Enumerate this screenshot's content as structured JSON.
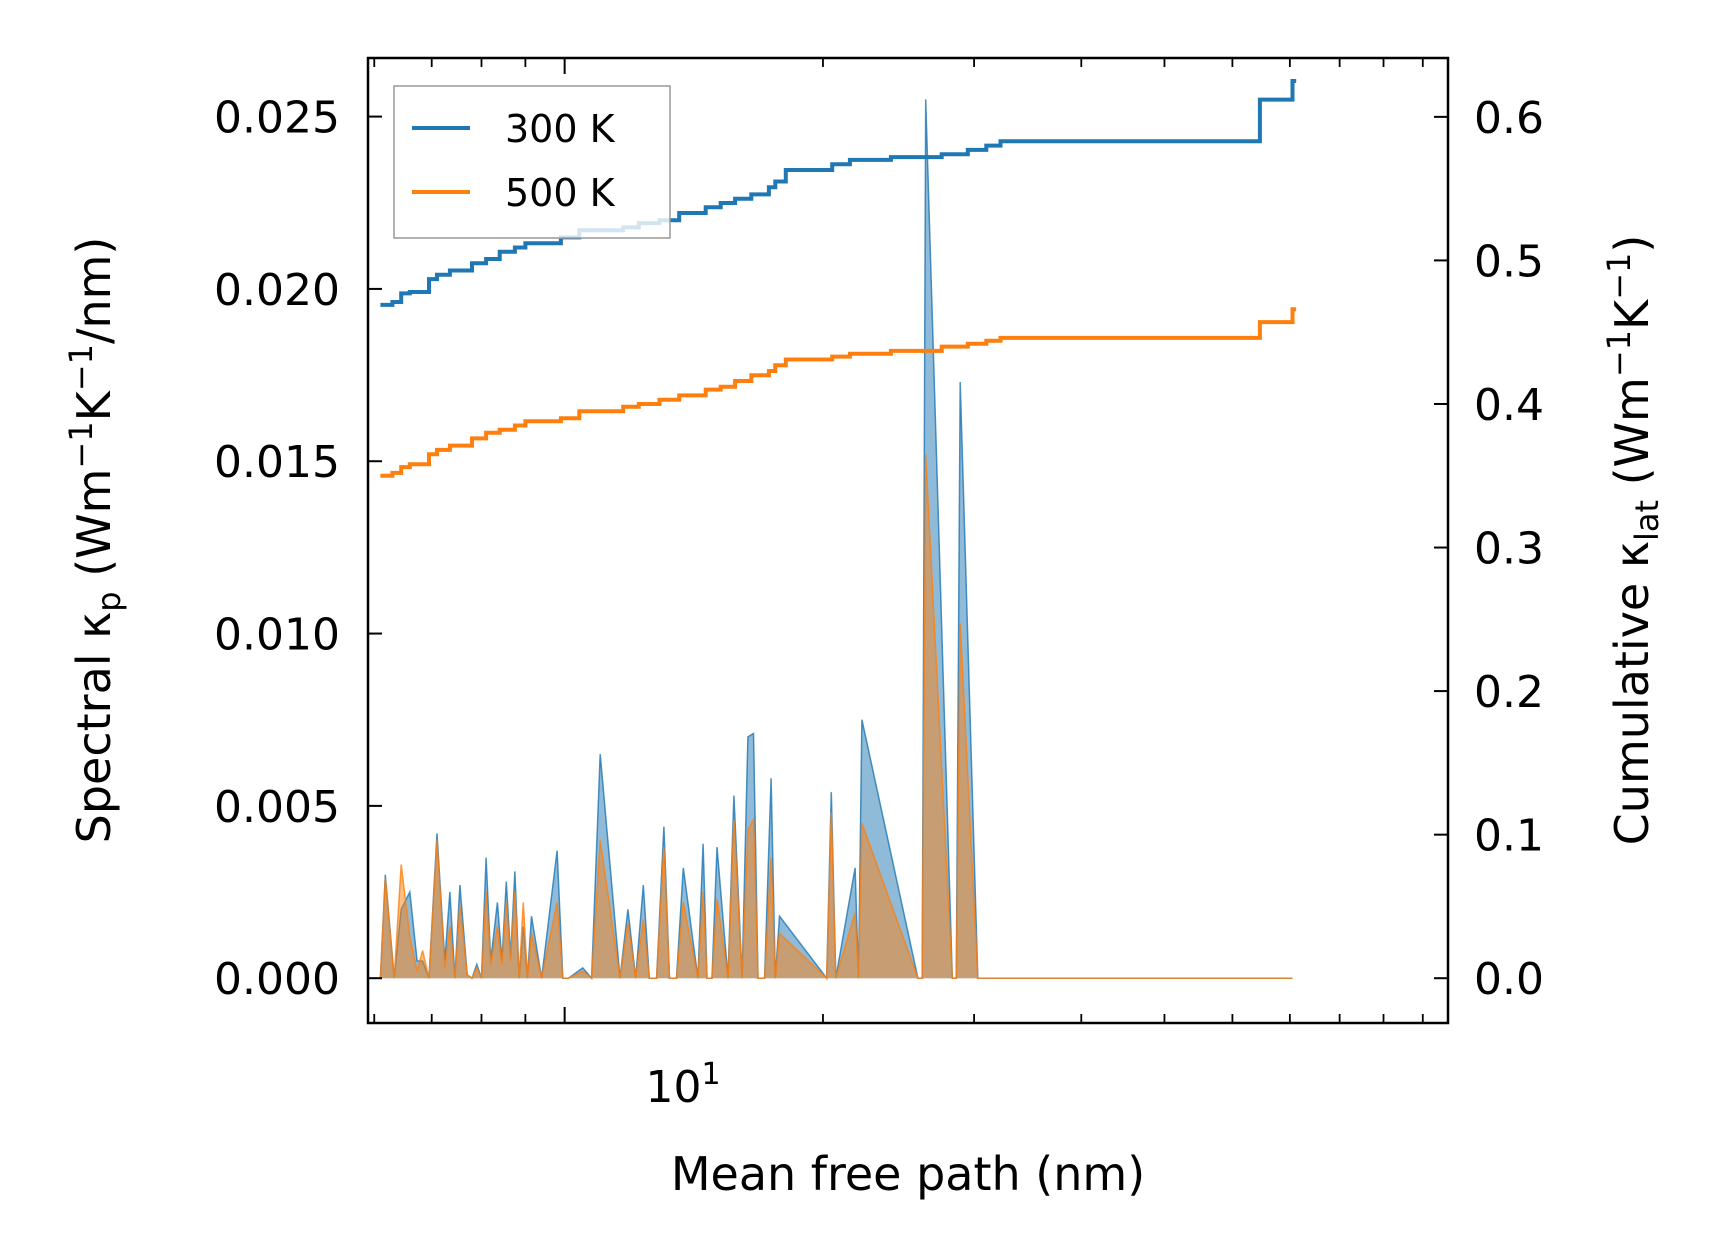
{
  "chart_data": {
    "type": "line",
    "xscale": "log",
    "xlabel": "Mean free path (nm)",
    "ylabel_left": {
      "pre": "Spectral κ",
      "sub": "p",
      "post": " (Wm",
      "sup1": "−1",
      "mid": "K",
      "sup2": "−1",
      "end": "/nm)"
    },
    "ylabel_right": {
      "pre": "Cumulative κ",
      "sub": "lat",
      "post": " (Wm",
      "sup1": "−1",
      "mid": "K",
      "sup2": "−1",
      "end": ")"
    },
    "xtick_label": {
      "base": "10",
      "exp": "1"
    },
    "xlim": [
      5.9,
      107
    ],
    "ylim_left": [
      -0.0013,
      0.0267
    ],
    "ylim_right": [
      -0.0312,
      0.641
    ],
    "yticks_left": [
      "0.000",
      "0.005",
      "0.010",
      "0.015",
      "0.020",
      "0.025"
    ],
    "yticks_left_values": [
      0,
      0.005,
      0.01,
      0.015,
      0.02,
      0.025
    ],
    "yticks_right": [
      "0.0",
      "0.1",
      "0.2",
      "0.3",
      "0.4",
      "0.5",
      "0.6"
    ],
    "yticks_right_values": [
      0,
      0.1,
      0.2,
      0.3,
      0.4,
      0.5,
      0.6
    ],
    "legend": {
      "placement": "top-left",
      "entries": [
        "300 K",
        "500 K"
      ]
    },
    "colors": {
      "s300": "#1f77b4",
      "s500": "#ff7f0e"
    },
    "cumulative": [
      {
        "name": "300 K",
        "x": [
          6.1,
          6.3,
          6.45,
          6.6,
          6.95,
          7.1,
          7.35,
          7.8,
          8.1,
          8.4,
          8.75,
          9.0,
          9.9,
          10.4,
          11.7,
          12.2,
          12.9,
          13.6,
          14.6,
          15.2,
          15.8,
          16.5,
          17.3,
          17.6,
          18.1,
          20.5,
          21.5,
          24.0,
          27.5,
          29.5,
          31.0,
          32.2,
          63.6,
          64.6,
          69.7,
          70.5,
          71.2
        ],
        "y": [
          0.469,
          0.471,
          0.477,
          0.478,
          0.487,
          0.49,
          0.493,
          0.498,
          0.501,
          0.506,
          0.509,
          0.512,
          0.516,
          0.521,
          0.523,
          0.526,
          0.528,
          0.533,
          0.537,
          0.54,
          0.543,
          0.546,
          0.551,
          0.555,
          0.563,
          0.567,
          0.57,
          0.572,
          0.574,
          0.577,
          0.58,
          0.583,
          0.583,
          0.612,
          0.612,
          0.625,
          0.625
        ]
      },
      {
        "name": "500 K",
        "x": [
          6.1,
          6.3,
          6.45,
          6.6,
          6.95,
          7.1,
          7.35,
          7.8,
          8.1,
          8.4,
          8.75,
          9.0,
          9.9,
          10.4,
          11.7,
          12.2,
          12.9,
          13.6,
          14.6,
          15.2,
          15.8,
          16.5,
          17.3,
          17.6,
          18.1,
          20.5,
          21.5,
          24.0,
          27.5,
          29.5,
          31.0,
          32.2,
          63.6,
          64.6,
          69.7,
          70.5,
          71.2
        ],
        "y": [
          0.35,
          0.352,
          0.356,
          0.358,
          0.365,
          0.368,
          0.371,
          0.376,
          0.38,
          0.382,
          0.385,
          0.388,
          0.39,
          0.395,
          0.398,
          0.4,
          0.403,
          0.406,
          0.41,
          0.412,
          0.416,
          0.42,
          0.423,
          0.427,
          0.431,
          0.433,
          0.435,
          0.437,
          0.44,
          0.442,
          0.444,
          0.446,
          0.446,
          0.457,
          0.457,
          0.466,
          0.466
        ]
      }
    ],
    "spectral": [
      {
        "name": "300 K",
        "x": [
          6.1,
          6.18,
          6.33,
          6.45,
          6.6,
          6.73,
          6.83,
          6.95,
          7.1,
          7.25,
          7.35,
          7.45,
          7.55,
          7.7,
          7.8,
          7.9,
          8.0,
          8.1,
          8.2,
          8.35,
          8.45,
          8.55,
          8.65,
          8.75,
          8.85,
          8.95,
          9.05,
          9.15,
          9.4,
          9.8,
          9.95,
          10.1,
          10.5,
          10.75,
          11.0,
          11.6,
          11.85,
          12.1,
          12.35,
          12.55,
          12.8,
          13.05,
          13.25,
          13.5,
          13.75,
          14.3,
          14.5,
          14.65,
          14.85,
          15.05,
          15.5,
          15.75,
          16.1,
          16.35,
          16.6,
          16.8,
          17.1,
          17.4,
          17.6,
          17.8,
          20.2,
          20.45,
          20.7,
          21.8,
          22.0,
          22.2,
          25.8,
          26.1,
          26.35,
          28.3,
          28.6,
          28.9,
          30.3,
          30.6,
          30.9,
          62.8,
          63.8,
          64.9,
          68.8,
          69.6,
          70.5
        ],
        "y": [
          0.0,
          0.003,
          0.0,
          0.002,
          0.0025,
          0.0005,
          0.0005,
          0.0,
          0.0042,
          0.0005,
          0.0025,
          0.0,
          0.0027,
          0.0001,
          0.0,
          0.0004,
          0.0,
          0.0035,
          0.0005,
          0.0022,
          0.0005,
          0.0028,
          0.0006,
          0.0031,
          0.0,
          0.0015,
          0.0,
          0.0018,
          0.0,
          0.0037,
          0.0,
          0.0,
          0.0003,
          0.0,
          0.0065,
          0.0,
          0.002,
          0.0,
          0.0027,
          0.0,
          0.0,
          0.0044,
          0.0,
          0.0,
          0.0032,
          0.0,
          0.0039,
          0.0,
          0.0,
          0.0038,
          0.0,
          0.0053,
          0.0,
          0.007,
          0.0071,
          0.0,
          0.0,
          0.0058,
          0.0,
          0.0018,
          0.0,
          0.0054,
          0.0,
          0.0032,
          0.0,
          0.0075,
          0.0,
          0.0,
          0.0255,
          0.0,
          0.0,
          0.0173,
          0.0,
          0.0,
          0.0,
          0.0,
          0.0,
          0.0,
          0.0,
          0.0,
          0.0
        ]
      },
      {
        "name": "500 K",
        "x": [
          6.1,
          6.18,
          6.33,
          6.45,
          6.6,
          6.73,
          6.83,
          6.95,
          7.1,
          7.25,
          7.35,
          7.45,
          7.55,
          7.7,
          7.8,
          7.9,
          8.0,
          8.1,
          8.2,
          8.35,
          8.45,
          8.55,
          8.65,
          8.75,
          8.85,
          8.95,
          9.05,
          9.15,
          9.4,
          9.8,
          9.95,
          10.1,
          10.5,
          10.75,
          11.0,
          11.6,
          11.85,
          12.1,
          12.35,
          12.55,
          12.8,
          13.05,
          13.25,
          13.5,
          13.75,
          14.3,
          14.5,
          14.65,
          14.85,
          15.05,
          15.5,
          15.75,
          16.1,
          16.35,
          16.6,
          16.8,
          17.1,
          17.4,
          17.6,
          17.8,
          20.2,
          20.45,
          20.7,
          21.8,
          22.0,
          22.2,
          25.8,
          26.1,
          26.35,
          28.3,
          28.6,
          28.9,
          30.3,
          30.6,
          30.9,
          62.8,
          63.8,
          64.9,
          68.8,
          69.6,
          70.5
        ],
        "y": [
          0.0,
          0.0029,
          0.0,
          0.0033,
          0.0012,
          0.0002,
          0.0008,
          0.0,
          0.004,
          0.0003,
          0.0015,
          0.0,
          0.0021,
          0.0001,
          0.0,
          0.0003,
          0.0,
          0.0025,
          0.0004,
          0.0015,
          0.0004,
          0.0022,
          0.0005,
          0.0025,
          0.0,
          0.0022,
          0.0,
          0.0013,
          0.0,
          0.0022,
          0.0,
          0.0,
          0.0002,
          0.0,
          0.004,
          0.0,
          0.0016,
          0.0,
          0.0017,
          0.0,
          0.0,
          0.0038,
          0.0,
          0.0,
          0.0022,
          0.0,
          0.0025,
          0.0,
          0.0,
          0.0023,
          0.0,
          0.0046,
          0.0,
          0.0043,
          0.0046,
          0.0,
          0.0,
          0.0035,
          0.0,
          0.0013,
          0.0,
          0.0048,
          0.0,
          0.0019,
          0.0,
          0.0045,
          0.0,
          0.0,
          0.0152,
          0.0,
          0.0,
          0.0103,
          0.0,
          0.0,
          0.0,
          0.0,
          0.0,
          0.0,
          0.0,
          0.0,
          0.0
        ]
      }
    ]
  }
}
